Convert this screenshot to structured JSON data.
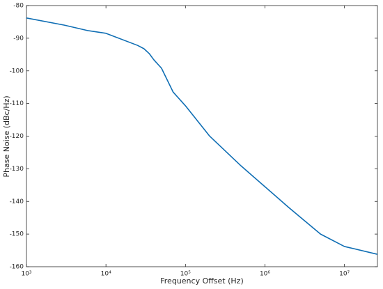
{
  "chart_data": {
    "type": "line",
    "xlabel": "Frequency Offset (Hz)",
    "ylabel": "Phase Noise (dBc/Hz)",
    "xscale": "log",
    "xlim": [
      1000,
      26000000
    ],
    "ylim": [
      -160,
      -80
    ],
    "xticks": [
      {
        "value": 1000,
        "label": "10³"
      },
      {
        "value": 10000,
        "label": "10⁴"
      },
      {
        "value": 100000,
        "label": "10⁵"
      },
      {
        "value": 1000000,
        "label": "10⁶"
      },
      {
        "value": 10000000,
        "label": "10⁷"
      }
    ],
    "yticks": [
      -160,
      -150,
      -140,
      -130,
      -120,
      -110,
      -100,
      -90,
      -80
    ],
    "grid": false,
    "series": [
      {
        "color": "#0f6eb4",
        "x": [
          1000,
          3000,
          6000,
          10000,
          25000,
          30000,
          35000,
          40000,
          50000,
          70000,
          100000,
          200000,
          500000,
          1000000,
          2000000,
          5000000,
          10000000,
          26000000
        ],
        "values": [
          -83.8,
          -86.0,
          -87.7,
          -88.5,
          -92.2,
          -93.2,
          -94.7,
          -96.6,
          -99.2,
          -106.5,
          -110.7,
          -119.9,
          -129.1,
          -135.5,
          -141.9,
          -150.0,
          -153.8,
          -156.2
        ]
      }
    ]
  }
}
